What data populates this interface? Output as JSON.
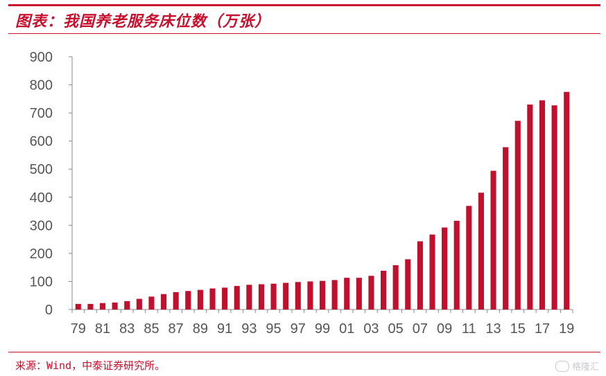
{
  "header": {
    "title": "图表：我国养老服务床位数（万张）"
  },
  "footer": {
    "source": "来源：Wind，中泰证券研究所。"
  },
  "watermark": {
    "text": "格隆汇",
    "icon": "gelonghui-logo-icon"
  },
  "colors": {
    "accent": "#c8102e",
    "bar": "#c0102e",
    "axis": "#888888",
    "text": "#555555"
  },
  "chart_data": {
    "type": "bar",
    "title": "图表：我国养老服务床位数（万张）",
    "xlabel": "",
    "ylabel": "",
    "ylim": [
      0,
      900
    ],
    "yticks": [
      "0",
      "100",
      "200",
      "300",
      "400",
      "500",
      "600",
      "700",
      "800",
      "900"
    ],
    "xtick_labels": [
      "79",
      "81",
      "83",
      "85",
      "87",
      "89",
      "91",
      "93",
      "95",
      "97",
      "99",
      "01",
      "03",
      "05",
      "07",
      "09",
      "11",
      "13",
      "15",
      "17",
      "19"
    ],
    "grid": false,
    "legend": "none",
    "categories": [
      "1979",
      "1980",
      "1981",
      "1982",
      "1983",
      "1984",
      "1985",
      "1986",
      "1987",
      "1988",
      "1989",
      "1990",
      "1991",
      "1992",
      "1993",
      "1994",
      "1995",
      "1996",
      "1997",
      "1998",
      "1999",
      "2000",
      "2001",
      "2002",
      "2003",
      "2004",
      "2005",
      "2006",
      "2007",
      "2008",
      "2009",
      "2010",
      "2011",
      "2012",
      "2013",
      "2014",
      "2015",
      "2016",
      "2017",
      "2018",
      "2019"
    ],
    "values": [
      20,
      20,
      23,
      25,
      30,
      38,
      46,
      55,
      62,
      66,
      70,
      75,
      78,
      84,
      88,
      90,
      92,
      95,
      98,
      100,
      102,
      105,
      113,
      113,
      120,
      138,
      158,
      179,
      243,
      267,
      292,
      316,
      369,
      416,
      494,
      578,
      672,
      730,
      745,
      727,
      775
    ]
  }
}
